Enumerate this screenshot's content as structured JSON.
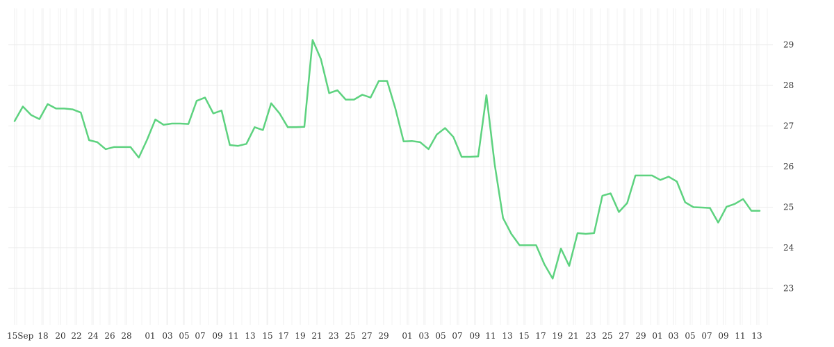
{
  "chart_data": {
    "type": "line",
    "title": "",
    "xlabel": "",
    "ylabel": "",
    "ylim": [
      22.1,
      29.9
    ],
    "y_ticks": [
      23,
      24,
      25,
      26,
      27,
      28,
      29
    ],
    "y_axis_position": "right",
    "grid": true,
    "line_color": "#5dd27f",
    "x_tick_labels": [
      "15Sep",
      "18",
      "20",
      "22",
      "24",
      "26",
      "28",
      "01",
      "03",
      "05",
      "07",
      "09",
      "11",
      "13",
      "15",
      "17",
      "19",
      "21",
      "23",
      "25",
      "27",
      "29",
      "01",
      "03",
      "05",
      "07",
      "09",
      "11",
      "13",
      "15",
      "17",
      "19",
      "21",
      "23",
      "25",
      "27",
      "29",
      "01",
      "03",
      "05",
      "07",
      "09",
      "11",
      "13"
    ],
    "series": [
      {
        "values": [
          27.12,
          27.48,
          27.27,
          27.17,
          27.54,
          27.43,
          27.43,
          27.41,
          27.33,
          26.65,
          26.6,
          26.43,
          26.48,
          26.48,
          26.48,
          26.22,
          26.66,
          27.16,
          27.03,
          27.06,
          27.06,
          27.05,
          27.62,
          27.7,
          27.31,
          27.38,
          26.53,
          26.51,
          26.56,
          26.97,
          26.9,
          27.56,
          27.31,
          26.97,
          26.97,
          26.98,
          29.12,
          28.65,
          27.81,
          27.88,
          27.65,
          27.65,
          27.77,
          27.7,
          28.11,
          28.11,
          27.43,
          26.62,
          26.63,
          26.6,
          26.43,
          26.79,
          26.95,
          26.73,
          26.24,
          26.24,
          26.25,
          27.76,
          26.05,
          24.73,
          24.34,
          24.06,
          24.06,
          24.06,
          23.59,
          23.24,
          23.98,
          23.55,
          24.36,
          24.34,
          24.36,
          25.28,
          25.34,
          24.88,
          25.1,
          25.78,
          25.78,
          25.78,
          25.67,
          25.75,
          25.63,
          25.12,
          25.0,
          24.99,
          24.98,
          24.62,
          25.01,
          25.08,
          25.2,
          24.91,
          24.91
        ]
      }
    ]
  }
}
